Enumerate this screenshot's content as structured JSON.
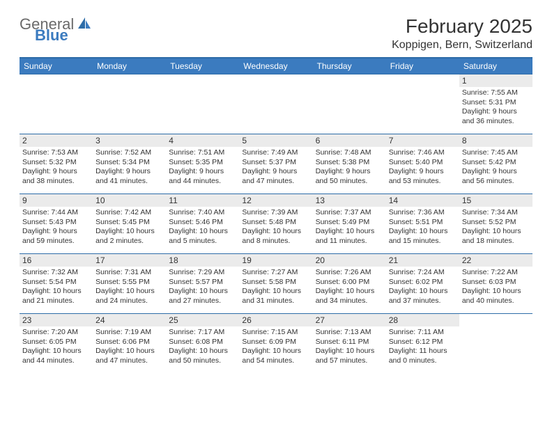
{
  "logo": {
    "text_gray": "General",
    "text_blue": "Blue"
  },
  "header": {
    "month_title": "February 2025",
    "location": "Koppigen, Bern, Switzerland"
  },
  "colors": {
    "header_bg": "#3b7bbf",
    "header_text": "#ffffff",
    "border": "#2d6ca8",
    "daynum_bg": "#ebebeb",
    "text": "#333333",
    "logo_gray": "#6a6a6a",
    "logo_blue": "#3b7bbf"
  },
  "day_headers": [
    "Sunday",
    "Monday",
    "Tuesday",
    "Wednesday",
    "Thursday",
    "Friday",
    "Saturday"
  ],
  "weeks": [
    [
      null,
      null,
      null,
      null,
      null,
      null,
      {
        "num": "1",
        "sunrise": "Sunrise: 7:55 AM",
        "sunset": "Sunset: 5:31 PM",
        "daylight": "Daylight: 9 hours and 36 minutes."
      }
    ],
    [
      {
        "num": "2",
        "sunrise": "Sunrise: 7:53 AM",
        "sunset": "Sunset: 5:32 PM",
        "daylight": "Daylight: 9 hours and 38 minutes."
      },
      {
        "num": "3",
        "sunrise": "Sunrise: 7:52 AM",
        "sunset": "Sunset: 5:34 PM",
        "daylight": "Daylight: 9 hours and 41 minutes."
      },
      {
        "num": "4",
        "sunrise": "Sunrise: 7:51 AM",
        "sunset": "Sunset: 5:35 PM",
        "daylight": "Daylight: 9 hours and 44 minutes."
      },
      {
        "num": "5",
        "sunrise": "Sunrise: 7:49 AM",
        "sunset": "Sunset: 5:37 PM",
        "daylight": "Daylight: 9 hours and 47 minutes."
      },
      {
        "num": "6",
        "sunrise": "Sunrise: 7:48 AM",
        "sunset": "Sunset: 5:38 PM",
        "daylight": "Daylight: 9 hours and 50 minutes."
      },
      {
        "num": "7",
        "sunrise": "Sunrise: 7:46 AM",
        "sunset": "Sunset: 5:40 PM",
        "daylight": "Daylight: 9 hours and 53 minutes."
      },
      {
        "num": "8",
        "sunrise": "Sunrise: 7:45 AM",
        "sunset": "Sunset: 5:42 PM",
        "daylight": "Daylight: 9 hours and 56 minutes."
      }
    ],
    [
      {
        "num": "9",
        "sunrise": "Sunrise: 7:44 AM",
        "sunset": "Sunset: 5:43 PM",
        "daylight": "Daylight: 9 hours and 59 minutes."
      },
      {
        "num": "10",
        "sunrise": "Sunrise: 7:42 AM",
        "sunset": "Sunset: 5:45 PM",
        "daylight": "Daylight: 10 hours and 2 minutes."
      },
      {
        "num": "11",
        "sunrise": "Sunrise: 7:40 AM",
        "sunset": "Sunset: 5:46 PM",
        "daylight": "Daylight: 10 hours and 5 minutes."
      },
      {
        "num": "12",
        "sunrise": "Sunrise: 7:39 AM",
        "sunset": "Sunset: 5:48 PM",
        "daylight": "Daylight: 10 hours and 8 minutes."
      },
      {
        "num": "13",
        "sunrise": "Sunrise: 7:37 AM",
        "sunset": "Sunset: 5:49 PM",
        "daylight": "Daylight: 10 hours and 11 minutes."
      },
      {
        "num": "14",
        "sunrise": "Sunrise: 7:36 AM",
        "sunset": "Sunset: 5:51 PM",
        "daylight": "Daylight: 10 hours and 15 minutes."
      },
      {
        "num": "15",
        "sunrise": "Sunrise: 7:34 AM",
        "sunset": "Sunset: 5:52 PM",
        "daylight": "Daylight: 10 hours and 18 minutes."
      }
    ],
    [
      {
        "num": "16",
        "sunrise": "Sunrise: 7:32 AM",
        "sunset": "Sunset: 5:54 PM",
        "daylight": "Daylight: 10 hours and 21 minutes."
      },
      {
        "num": "17",
        "sunrise": "Sunrise: 7:31 AM",
        "sunset": "Sunset: 5:55 PM",
        "daylight": "Daylight: 10 hours and 24 minutes."
      },
      {
        "num": "18",
        "sunrise": "Sunrise: 7:29 AM",
        "sunset": "Sunset: 5:57 PM",
        "daylight": "Daylight: 10 hours and 27 minutes."
      },
      {
        "num": "19",
        "sunrise": "Sunrise: 7:27 AM",
        "sunset": "Sunset: 5:58 PM",
        "daylight": "Daylight: 10 hours and 31 minutes."
      },
      {
        "num": "20",
        "sunrise": "Sunrise: 7:26 AM",
        "sunset": "Sunset: 6:00 PM",
        "daylight": "Daylight: 10 hours and 34 minutes."
      },
      {
        "num": "21",
        "sunrise": "Sunrise: 7:24 AM",
        "sunset": "Sunset: 6:02 PM",
        "daylight": "Daylight: 10 hours and 37 minutes."
      },
      {
        "num": "22",
        "sunrise": "Sunrise: 7:22 AM",
        "sunset": "Sunset: 6:03 PM",
        "daylight": "Daylight: 10 hours and 40 minutes."
      }
    ],
    [
      {
        "num": "23",
        "sunrise": "Sunrise: 7:20 AM",
        "sunset": "Sunset: 6:05 PM",
        "daylight": "Daylight: 10 hours and 44 minutes."
      },
      {
        "num": "24",
        "sunrise": "Sunrise: 7:19 AM",
        "sunset": "Sunset: 6:06 PM",
        "daylight": "Daylight: 10 hours and 47 minutes."
      },
      {
        "num": "25",
        "sunrise": "Sunrise: 7:17 AM",
        "sunset": "Sunset: 6:08 PM",
        "daylight": "Daylight: 10 hours and 50 minutes."
      },
      {
        "num": "26",
        "sunrise": "Sunrise: 7:15 AM",
        "sunset": "Sunset: 6:09 PM",
        "daylight": "Daylight: 10 hours and 54 minutes."
      },
      {
        "num": "27",
        "sunrise": "Sunrise: 7:13 AM",
        "sunset": "Sunset: 6:11 PM",
        "daylight": "Daylight: 10 hours and 57 minutes."
      },
      {
        "num": "28",
        "sunrise": "Sunrise: 7:11 AM",
        "sunset": "Sunset: 6:12 PM",
        "daylight": "Daylight: 11 hours and 0 minutes."
      },
      null
    ]
  ]
}
